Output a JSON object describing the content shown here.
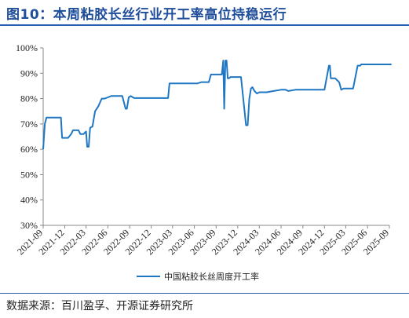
{
  "header": {
    "title": "图10：本周粘胶长丝行业开工率高位持稳运行"
  },
  "footer": {
    "source": "数据来源：百川盈孚、开源证券研究所"
  },
  "colors": {
    "series": "#1f77c4",
    "title": "#1f4e9a",
    "axis": "#888888",
    "rule": "#2a5db0"
  },
  "chart_data": {
    "type": "line",
    "title": "",
    "xlabel": "",
    "ylabel": "",
    "ylim": [
      30,
      100
    ],
    "y_ticks": [
      "30%",
      "40%",
      "50%",
      "60%",
      "70%",
      "80%",
      "90%",
      "100%"
    ],
    "x_ticks": [
      "2021-09",
      "2021-12",
      "2022-03",
      "2022-06",
      "2022-09",
      "2022-12",
      "2023-03",
      "2023-06",
      "2023-09",
      "2023-12",
      "2024-03",
      "2024-06",
      "2024-09",
      "2024-12",
      "2025-03",
      "2025-06",
      "2025-09"
    ],
    "grid": false,
    "legend": "bottom-center",
    "series": [
      {
        "name": "中国粘胶长丝周度开工率",
        "x": [
          "2021-09-01",
          "2021-09-08",
          "2021-09-15",
          "2021-10-15",
          "2021-11-15",
          "2021-11-20",
          "2021-12-15",
          "2021-12-28",
          "2022-01-05",
          "2022-01-28",
          "2022-02-05",
          "2022-02-18",
          "2022-03-01",
          "2022-03-06",
          "2022-03-12",
          "2022-03-18",
          "2022-03-28",
          "2022-04-08",
          "2022-04-22",
          "2022-05-06",
          "2022-05-18",
          "2022-06-01",
          "2022-06-15",
          "2022-07-01",
          "2022-08-01",
          "2022-08-15",
          "2022-08-20",
          "2022-08-28",
          "2022-09-05",
          "2022-09-20",
          "2022-10-01",
          "2022-11-01",
          "2022-12-01",
          "2023-01-01",
          "2023-02-01",
          "2023-02-10",
          "2023-02-16",
          "2023-03-01",
          "2023-04-01",
          "2023-05-01",
          "2023-06-01",
          "2023-06-15",
          "2023-07-01",
          "2023-08-01",
          "2023-08-10",
          "2023-09-01",
          "2023-09-25",
          "2023-10-01",
          "2023-10-05",
          "2023-10-10",
          "2023-10-15",
          "2023-10-20",
          "2023-10-25",
          "2023-11-01",
          "2023-11-05",
          "2023-11-15",
          "2023-12-01",
          "2023-12-15",
          "2024-01-05",
          "2024-01-12",
          "2024-01-19",
          "2024-01-26",
          "2024-02-01",
          "2024-02-10",
          "2024-02-20",
          "2024-03-01",
          "2024-04-01",
          "2024-05-01",
          "2024-06-01",
          "2024-06-20",
          "2024-07-01",
          "2024-08-01",
          "2024-08-15",
          "2024-09-01",
          "2024-10-01",
          "2024-11-01",
          "2024-12-01",
          "2024-12-20",
          "2024-12-24",
          "2024-12-28",
          "2025-01-05",
          "2025-01-15",
          "2025-02-01",
          "2025-02-10",
          "2025-02-20",
          "2025-03-01",
          "2025-03-15",
          "2025-04-01",
          "2025-04-20",
          "2025-05-01",
          "2025-05-05",
          "2025-05-20",
          "2025-06-01",
          "2025-07-01",
          "2025-08-01",
          "2025-09-10"
        ],
        "values": [
          60,
          70,
          72.5,
          72.5,
          72.5,
          64.5,
          64.5,
          66,
          67.5,
          67.5,
          66,
          66,
          67,
          61,
          61,
          68.5,
          69,
          75,
          77,
          80,
          80,
          80.5,
          81,
          81,
          81,
          76,
          76,
          80.5,
          81,
          80.2,
          80.2,
          80.2,
          80.2,
          80.2,
          80.2,
          80.2,
          86,
          86,
          86,
          86,
          86,
          86,
          86.5,
          86.5,
          89.5,
          89.5,
          89.5,
          95,
          76,
          95,
          95,
          88,
          88,
          88.5,
          88.5,
          88.5,
          88.5,
          88.5,
          69.5,
          69.5,
          80,
          84,
          84.5,
          83,
          82,
          82.5,
          82.5,
          83,
          83.5,
          83.5,
          83,
          83.5,
          83.5,
          83.5,
          83.5,
          83.5,
          83.5,
          93,
          93,
          88,
          88,
          88,
          86.5,
          83.5,
          84,
          84,
          84,
          84,
          93,
          93,
          93.5,
          93.5,
          93.5,
          93.5,
          93.5,
          93.5
        ]
      }
    ]
  }
}
